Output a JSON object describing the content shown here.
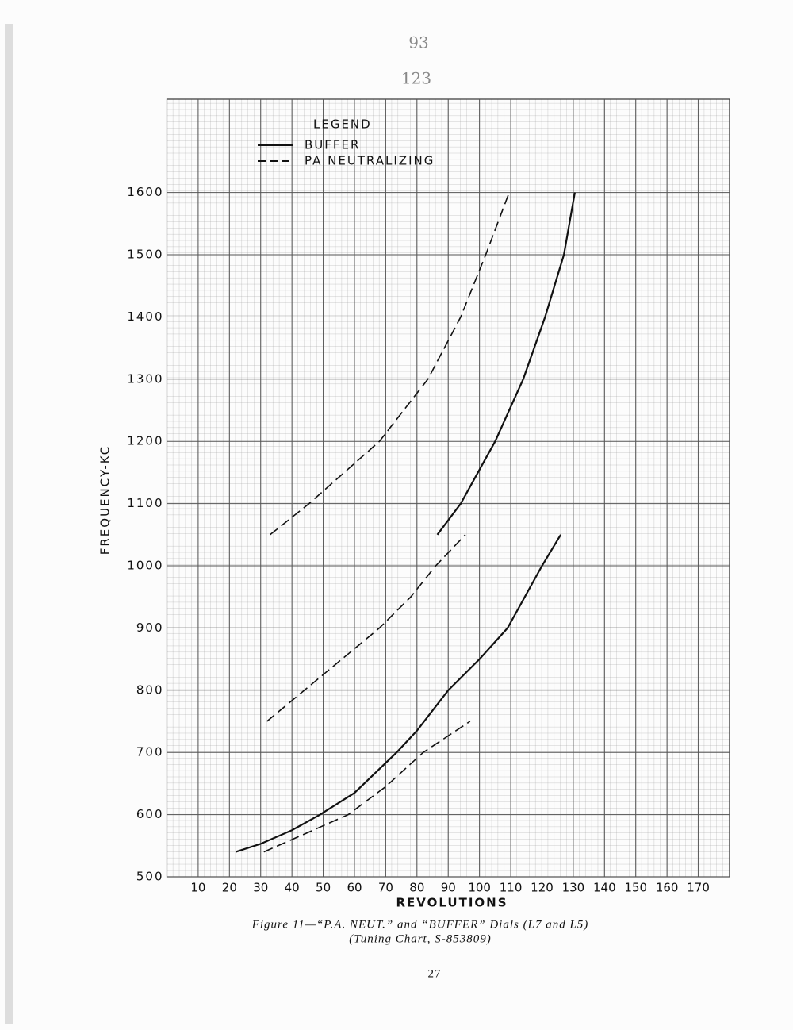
{
  "chart_data": {
    "type": "line",
    "annotations": [
      "93",
      "123"
    ],
    "legend_title": "LEGEND",
    "legend": "upper left",
    "xlabel": "REVOLUTIONS",
    "ylabel": "FREQUENCY-KC",
    "xlim": [
      0,
      180
    ],
    "ylim": [
      500,
      1750
    ],
    "xticks": [
      10,
      20,
      30,
      40,
      50,
      60,
      70,
      80,
      90,
      100,
      110,
      120,
      130,
      140,
      150,
      160,
      170
    ],
    "yticks": [
      500,
      600,
      700,
      800,
      900,
      1000,
      1100,
      1200,
      1300,
      1400,
      1500,
      1600
    ],
    "grid": true,
    "series": [
      {
        "name": "BUFFER",
        "color": "#111111",
        "dashed": false,
        "x": [
          22,
          30,
          40,
          49,
          60,
          73.5,
          80,
          90,
          100,
          109,
          120,
          126,
          null,
          86.5,
          94,
          105,
          114,
          121,
          127,
          130.5
        ],
        "values": [
          540,
          553,
          575,
          600,
          635,
          700,
          735,
          800,
          850,
          900,
          1000,
          1050,
          null,
          1050,
          1100,
          1200,
          1300,
          1400,
          1500,
          1600
        ]
      },
      {
        "name": "PA NEUTRALIZING",
        "color": "#111111",
        "dashed": true,
        "x": [
          31,
          40,
          58,
          70,
          82,
          97,
          null,
          32,
          44,
          56,
          68,
          78,
          86,
          95.5,
          null,
          33,
          45.5,
          68,
          83.5,
          94,
          102,
          109.5
        ],
        "values": [
          540,
          560,
          600,
          645,
          700,
          750,
          null,
          750,
          800,
          850,
          900,
          950,
          1000,
          1050,
          null,
          1050,
          1100,
          1200,
          1300,
          1400,
          1500,
          1600
        ]
      }
    ],
    "caption": [
      "Figure 11—“P.A. NEUT.” and “BUFFER” Dials (L7 and L5)",
      "(Tuning Chart, S-853809)"
    ],
    "page_number": "27"
  }
}
